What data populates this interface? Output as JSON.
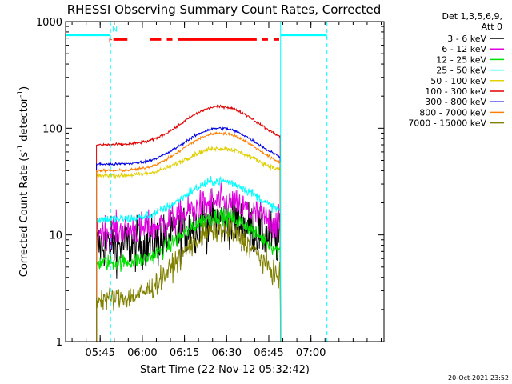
{
  "chart_data": {
    "type": "line",
    "title": "RHESSI Observing Summary Count Rates, Corrected",
    "xlabel": "Start Time (22-Nov-12 05:32:42)",
    "ylabel_main": "Corrected Count Rate (s",
    "ylabel_sup1": "-1",
    "ylabel_mid": " detector",
    "ylabel_sup2": "-1",
    "ylabel_end": ")",
    "y_scale": "log",
    "ylim": [
      1,
      1000
    ],
    "y_ticks": [
      {
        "value": 1,
        "label": "1"
      },
      {
        "value": 10,
        "label": "10"
      },
      {
        "value": 100,
        "label": "100"
      },
      {
        "value": 1000,
        "label": "1000"
      }
    ],
    "xlim": [
      0,
      113.3
    ],
    "x_ticks": [
      {
        "value": 12.3,
        "label": "05:45"
      },
      {
        "value": 27.3,
        "label": "06:00"
      },
      {
        "value": 42.3,
        "label": "06:15"
      },
      {
        "value": 57.3,
        "label": "06:30"
      },
      {
        "value": 72.3,
        "label": "06:45"
      },
      {
        "value": 87.3,
        "label": "07:00"
      }
    ],
    "legend_placement": "right",
    "legend_header": [
      "Det 1,3,5,6,9,",
      "Att 0"
    ],
    "series": [
      {
        "name": "3 - 6 keV",
        "color": "#000000",
        "base": 8,
        "peak": 14,
        "noise": 0.55
      },
      {
        "name": "6 - 12 keV",
        "color": "#e000e0",
        "base": 11,
        "peak": 20,
        "noise": 0.35
      },
      {
        "name": "12 - 25 keV",
        "color": "#00e000",
        "base": 5.5,
        "peak": 15,
        "noise": 0.18
      },
      {
        "name": "25 - 50 keV",
        "color": "#00ffff",
        "base": 14,
        "peak": 32,
        "noise": 0.1
      },
      {
        "name": "50 - 100 keV",
        "color": "#e0d000",
        "base": 36,
        "peak": 65,
        "noise": 0.05
      },
      {
        "name": "100 - 300 keV",
        "color": "#e00000",
        "base": 70,
        "peak": 160,
        "noise": 0.03
      },
      {
        "name": "300 - 800 keV",
        "color": "#0000e0",
        "base": 46,
        "peak": 100,
        "noise": 0.03
      },
      {
        "name": "800 - 7000 keV",
        "color": "#ff8000",
        "base": 40,
        "peak": 90,
        "noise": 0.03
      },
      {
        "name": "7000 - 15000 keV",
        "color": "#808000",
        "base": 2.5,
        "peak": 11,
        "noise": 0.25
      }
    ],
    "data_window": [
      11,
      76.5
    ],
    "peak_time": 55,
    "night_flag": {
      "label": "N",
      "color": "#00ffff",
      "level": 750,
      "intervals": [
        [
          0,
          16
        ],
        [
          76.5,
          93
        ]
      ]
    },
    "flare_flag": {
      "label": "F",
      "color": "#ff0000",
      "level": 680,
      "intervals": [
        [
          17,
          22
        ],
        [
          30,
          34
        ],
        [
          36,
          38
        ],
        [
          40,
          68
        ],
        [
          70,
          72
        ],
        [
          74,
          76
        ]
      ]
    },
    "vlines": [
      {
        "x": 16,
        "color": "#00ffff",
        "style": "dashed"
      },
      {
        "x": 76.5,
        "color": "#00ffff",
        "style": "solid"
      },
      {
        "x": 93,
        "color": "#00ffff",
        "style": "dashed"
      }
    ]
  },
  "timestamp": "20-Oct-2021 23:52"
}
